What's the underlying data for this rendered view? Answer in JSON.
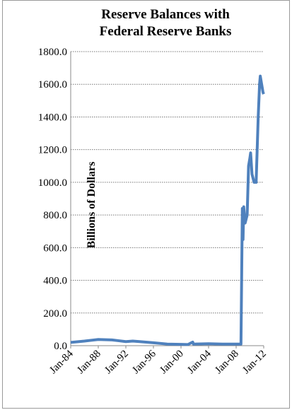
{
  "chart_data": {
    "type": "line",
    "title": "Reserve Balances with Federal Reserve Banks",
    "y_label": "Billions of Dollars",
    "x": [
      1984,
      1986,
      1988,
      1990,
      1991,
      1992,
      1993,
      1994,
      1996,
      1998,
      2000,
      2001,
      2001.7,
      2001.8,
      2004,
      2006,
      2008.7,
      2008.9,
      2009.0,
      2009.1,
      2009.3,
      2009.6,
      2009.8,
      2010.0,
      2010.1,
      2010.3,
      2010.6,
      2010.9,
      2011.2,
      2011.4,
      2011.5,
      2011.7,
      2011.9,
      2012
    ],
    "series": [
      {
        "name": "Reserve Balances",
        "color": "#4f81bd",
        "values": [
          20,
          28,
          38,
          35,
          30,
          25,
          28,
          25,
          18,
          10,
          8,
          7,
          22,
          10,
          12,
          10,
          10,
          840,
          650,
          850,
          750,
          800,
          1100,
          1150,
          1180,
          1050,
          1000,
          1000,
          1400,
          1600,
          1650,
          1600,
          1550,
          1540
        ]
      }
    ],
    "xlim": [
      1984,
      2012
    ],
    "xticks": [
      {
        "value": 1984,
        "label": "Jan-84"
      },
      {
        "value": 1988,
        "label": "Jan-88"
      },
      {
        "value": 1992,
        "label": "Jan-92"
      },
      {
        "value": 1996,
        "label": "Jan-96"
      },
      {
        "value": 2000,
        "label": "Jan-00"
      },
      {
        "value": 2004,
        "label": "Jan-04"
      },
      {
        "value": 2008,
        "label": "Jan-08"
      },
      {
        "value": 2012,
        "label": "Jan-12"
      }
    ],
    "ylim": [
      0,
      1800
    ],
    "yticks": [
      {
        "value": 0,
        "label": "0.0"
      },
      {
        "value": 200,
        "label": "200.0"
      },
      {
        "value": 400,
        "label": "400.0"
      },
      {
        "value": 600,
        "label": "600.0"
      },
      {
        "value": 800,
        "label": "800.0"
      },
      {
        "value": 1000,
        "label": "1000.0"
      },
      {
        "value": 1200,
        "label": "1200.0"
      },
      {
        "value": 1400,
        "label": "1400.0"
      },
      {
        "value": 1600,
        "label": "1600.0"
      },
      {
        "value": 1800,
        "label": "1800.0"
      }
    ],
    "grid": true
  }
}
